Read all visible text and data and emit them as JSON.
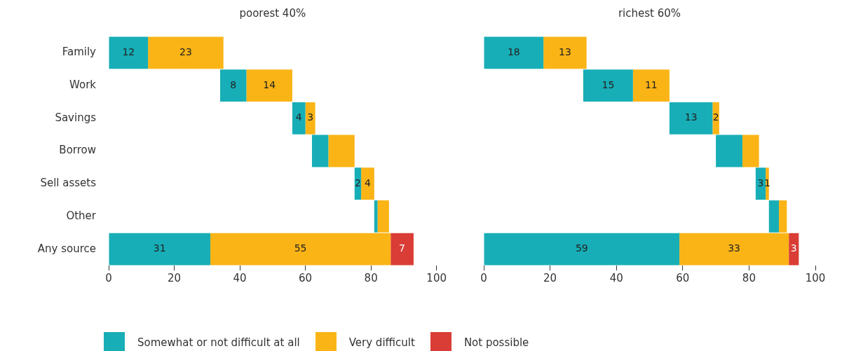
{
  "chart_data": [
    {
      "type": "bar",
      "orientation": "horizontal",
      "title": "poorest 40%",
      "categories": [
        "Family",
        "Work",
        "Savings",
        "Borrow",
        "Sell assets",
        "Other",
        "Any source"
      ],
      "series": [
        {
          "name": "Somewhat or not difficult at all",
          "color": "#17aeb7",
          "base": [
            0,
            34,
            56,
            62,
            75,
            81,
            0
          ],
          "values": [
            12,
            8,
            4,
            5,
            2,
            1,
            31
          ],
          "value_labels": [
            "12",
            "8",
            "4",
            null,
            "2",
            null,
            "31"
          ]
        },
        {
          "name": "Very difficult",
          "color": "#fbb416",
          "base": [
            12,
            42,
            60,
            67,
            77,
            82,
            31
          ],
          "values": [
            23,
            14,
            3,
            8,
            4,
            3.5,
            55
          ],
          "value_labels": [
            "23",
            "14",
            "3",
            null,
            "4",
            null,
            "55"
          ]
        },
        {
          "name": "Not possible",
          "color": "#d93d35",
          "base": [
            null,
            null,
            null,
            null,
            null,
            null,
            86
          ],
          "values": [
            null,
            null,
            null,
            null,
            null,
            null,
            7
          ],
          "value_labels": [
            null,
            null,
            null,
            null,
            null,
            null,
            "7"
          ]
        }
      ],
      "xlim": [
        0,
        100
      ],
      "xticks": [
        0,
        20,
        40,
        60,
        80,
        100
      ],
      "grid": false,
      "legend": "bottom"
    },
    {
      "type": "bar",
      "orientation": "horizontal",
      "title": "richest 60%",
      "categories": [
        null,
        null,
        null,
        null,
        null,
        null,
        null
      ],
      "series": [
        {
          "color": "#17aeb7",
          "base": [
            0,
            30,
            56,
            70,
            82,
            86,
            0
          ],
          "values": [
            18,
            15,
            13,
            8,
            3,
            3,
            59
          ],
          "value_labels": [
            "18",
            "15",
            "13",
            null,
            "3",
            null,
            "59"
          ]
        },
        {
          "color": "#fbb416",
          "base": [
            18,
            45,
            69,
            78,
            85,
            89,
            59
          ],
          "values": [
            13,
            11,
            2,
            5,
            1,
            2.4,
            33
          ],
          "value_labels": [
            "13",
            "11",
            "2",
            null,
            "1",
            null,
            "33"
          ]
        },
        {
          "color": "#d93d35",
          "base": [
            null,
            null,
            null,
            null,
            null,
            null,
            92
          ],
          "values": [
            null,
            null,
            null,
            null,
            null,
            null,
            3
          ],
          "value_labels": [
            null,
            null,
            null,
            null,
            null,
            null,
            "3"
          ]
        }
      ],
      "xlim": [
        0,
        100
      ],
      "xticks": [
        0,
        20,
        40,
        60,
        80,
        100
      ],
      "grid": false,
      "tick_labels": "x"
    }
  ]
}
